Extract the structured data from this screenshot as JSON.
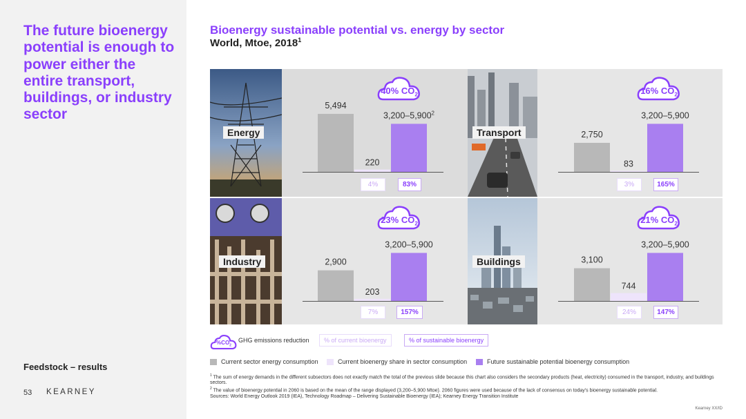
{
  "sidebar": {
    "headline": "The future bioenergy potential is enough to power either the entire transport, buildings, or industry sector",
    "section_label": "Feedstock – results",
    "page_number": "53",
    "brand": "KEARNEY"
  },
  "header": {
    "title": "Bioenergy sustainable potential vs. energy by sector",
    "subtitle": "World, Mtoe, 2018",
    "subtitle_sup": "1"
  },
  "chart_data": {
    "type": "bar",
    "title": "Bioenergy sustainable potential vs. energy by sector",
    "subtitle": "World, Mtoe, 2018",
    "unit": "Mtoe",
    "series": [
      {
        "name": "Current sector energy consumption",
        "color": "#b8b8b8"
      },
      {
        "name": "Current bioenergy share in sector consumption",
        "color": "#eee4fb"
      },
      {
        "name": "Future sustainable potential bioenergy consumption",
        "color": "#a97ff0"
      }
    ],
    "future_potential_range": [
      3200,
      5900
    ],
    "sectors": [
      {
        "name": "Energy",
        "current_consumption": 5494,
        "current_bioenergy": 220,
        "future_potential": 4550,
        "current_label": "5,494",
        "bio_label": "220",
        "future_label": "3,200–5,900",
        "future_label_sup": "2",
        "co2": "40% CO",
        "co2_sub": "2",
        "pct_current": "4%",
        "pct_future": "83%"
      },
      {
        "name": "Transport",
        "current_consumption": 2750,
        "current_bioenergy": 83,
        "future_potential": 4550,
        "current_label": "2,750",
        "bio_label": "83",
        "future_label": "3,200–5,900",
        "future_label_sup": "",
        "co2": "16% CO",
        "co2_sub": "2",
        "pct_current": "3%",
        "pct_future": "165%"
      },
      {
        "name": "Industry",
        "current_consumption": 2900,
        "current_bioenergy": 203,
        "future_potential": 4550,
        "current_label": "2,900",
        "bio_label": "203",
        "future_label": "3,200–5,900",
        "future_label_sup": "",
        "co2": "23% CO",
        "co2_sub": "2",
        "pct_current": "7%",
        "pct_future": "157%"
      },
      {
        "name": "Buildings",
        "current_consumption": 3100,
        "current_bioenergy": 744,
        "future_potential": 4550,
        "current_label": "3,100",
        "bio_label": "744",
        "future_label": "3,200–5,900",
        "future_label_sup": "",
        "co2": "21% CO",
        "co2_sub": "2",
        "pct_current": "24%",
        "pct_future": "147%"
      }
    ]
  },
  "legend": {
    "ghg_icon_text": "%CO",
    "ghg_icon_sub": "2",
    "ghg_label": "GHG emissions reduction",
    "pct_current_label": "% of current bioenergy",
    "pct_future_label": "% of sustainable bioenergy",
    "series_1": "Current sector energy consumption",
    "series_2": "Current bioenergy share in sector consumption",
    "series_3": "Future sustainable potential bioenergy consumption"
  },
  "footnotes": {
    "n1_sup": "1",
    "n1": " The sum of energy demands in the different subsectors does not exactly match the total of the previous slide because this chart also considers the secondary products (heat, electricity) consumed in the transport, industry, and buildings sectors.",
    "n2_sup": "2",
    "n2": " The value of bioenergy potential in 2060 is based on the mean of the range displayed (3,200–5,900 Mtoe). 2060 figures were used because of the lack of consensus on today's bioenergy sustainable potential.",
    "sources": "Sources: World Energy Outlook 2019 (IEA), Technology Roadmap – Delivering Sustainable Bioenergy (IEA); Kearney Energy Transition Institute"
  },
  "copyright": "Kearney XX/ID",
  "colors": {
    "accent": "#8a3ffc",
    "gray_bar": "#b8b8b8",
    "light_bar": "#eee4fb",
    "future_bar": "#a97ff0"
  }
}
